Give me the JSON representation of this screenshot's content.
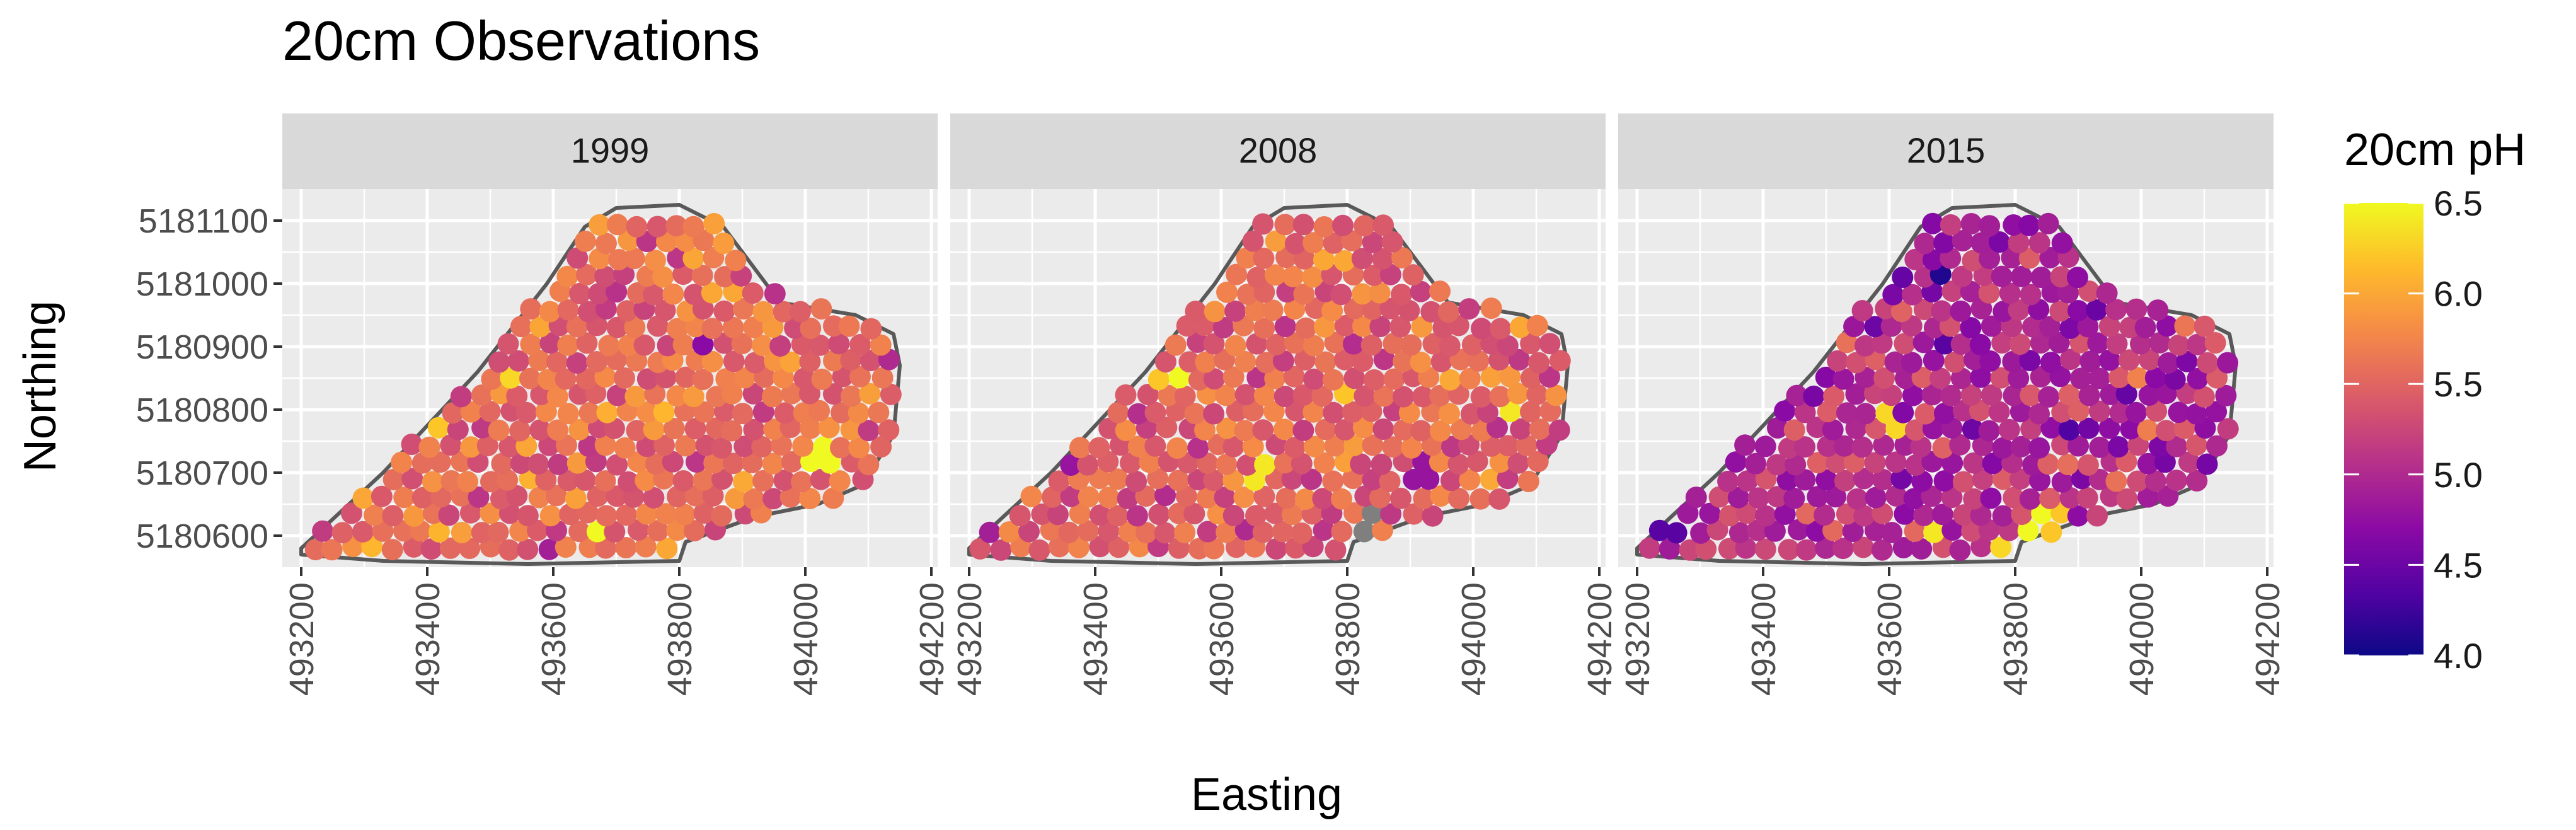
{
  "chart_data": {
    "type": "scatter",
    "title": "20cm Observations",
    "xlabel": "Easting",
    "ylabel": "Northing",
    "xlim": [
      493170,
      494210
    ],
    "ylim": [
      5180550,
      5181150
    ],
    "x_ticks": [
      493200,
      493400,
      493600,
      493800,
      494000,
      494200
    ],
    "x_tick_labels": [
      "493200",
      "493400",
      "493600",
      "493800",
      "494000",
      "494200"
    ],
    "y_ticks": [
      5180600,
      5180700,
      5180800,
      5180900,
      5181000,
      5181100
    ],
    "y_tick_labels": [
      "5180600",
      "5180700",
      "5180800",
      "5180900",
      "5181000",
      "5181100"
    ],
    "grid": true,
    "facets": [
      "1999",
      "2008",
      "2015"
    ],
    "legend": {
      "title": "20cm pH",
      "position": "right",
      "min": 4.0,
      "max": 6.5,
      "ticks": [
        4.0,
        4.5,
        5.0,
        5.5,
        6.0,
        6.5
      ],
      "tick_labels": [
        "4.0",
        "4.5",
        "5.0",
        "5.5",
        "6.0",
        "6.5"
      ],
      "colors": [
        "#0d0887",
        "#5302a3",
        "#8b0aa5",
        "#b83289",
        "#db5c68",
        "#f48849",
        "#febc2a",
        "#f0f921"
      ]
    },
    "na_color": "#7f7f7f",
    "boundary": [
      [
        493200,
        5180580
      ],
      [
        493330,
        5180700
      ],
      [
        493480,
        5180860
      ],
      [
        493590,
        5181000
      ],
      [
        493650,
        5181090
      ],
      [
        493700,
        5181120
      ],
      [
        493800,
        5181125
      ],
      [
        493870,
        5181090
      ],
      [
        493960,
        5180970
      ],
      [
        494080,
        5180950
      ],
      [
        494140,
        5180920
      ],
      [
        494150,
        5180870
      ],
      [
        494140,
        5180760
      ],
      [
        494090,
        5180680
      ],
      [
        494020,
        5180650
      ],
      [
        493920,
        5180630
      ],
      [
        493810,
        5180590
      ],
      [
        493800,
        5180560
      ],
      [
        493560,
        5180555
      ],
      [
        493330,
        5180560
      ],
      [
        493200,
        5180570
      ]
    ],
    "grid_points": {
      "spacing_x": 31,
      "spacing_y": 27,
      "stagger": 0.5,
      "x_range": [
        493220,
        494150
      ],
      "y_range": [
        5180580,
        5181110
      ]
    },
    "series": [
      {
        "name": "1999",
        "base_ph": 5.55,
        "spread": 0.3,
        "highlights": [
          [
            493680,
            5180610,
            6.5
          ],
          [
            494030,
            5180730,
            6.5
          ],
          [
            493540,
            5180840,
            6.3
          ],
          [
            493320,
            5180590,
            6.1
          ],
          [
            493420,
            5180760,
            6.2
          ],
          [
            493870,
            5180980,
            6.0
          ],
          [
            493790,
            5180580,
            6.0
          ],
          [
            493850,
            5180900,
            4.7
          ],
          [
            493440,
            5180890,
            4.9
          ],
          [
            493600,
            5180590,
            4.9
          ],
          [
            494140,
            5180890,
            5.0
          ],
          [
            493970,
            5180980,
            4.8
          ]
        ]
      },
      {
        "name": "2008",
        "base_ph": 5.5,
        "spread": 0.3,
        "highlights": [
          [
            493540,
            5180850,
            6.5
          ],
          [
            493660,
            5180700,
            6.4
          ],
          [
            494060,
            5180790,
            6.4
          ],
          [
            493800,
            5180830,
            6.2
          ],
          [
            493780,
            5181030,
            6.0
          ],
          [
            493480,
            5180850,
            6.2
          ],
          [
            494070,
            5180940,
            6.0
          ],
          [
            493830,
            5180620,
            null
          ],
          [
            493340,
            5180720,
            4.8
          ],
          [
            493920,
            5180700,
            4.8
          ],
          [
            493240,
            5180610,
            4.9
          ]
        ]
      },
      {
        "name": "2015",
        "base_ph": 5.05,
        "spread": 0.35,
        "highlights": [
          [
            493690,
            5181020,
            4.1
          ],
          [
            493620,
            5181090,
            4.2
          ],
          [
            493370,
            5180800,
            4.3
          ],
          [
            493250,
            5180610,
            4.4
          ],
          [
            493280,
            5180680,
            4.5
          ],
          [
            493480,
            5180830,
            4.6
          ],
          [
            493830,
            5180620,
            6.5
          ],
          [
            493680,
            5180610,
            6.4
          ],
          [
            493600,
            5180780,
            6.3
          ],
          [
            493780,
            5180590,
            6.3
          ],
          [
            493870,
            5180620,
            6.2
          ],
          [
            494000,
            5180770,
            5.7
          ]
        ]
      }
    ]
  }
}
